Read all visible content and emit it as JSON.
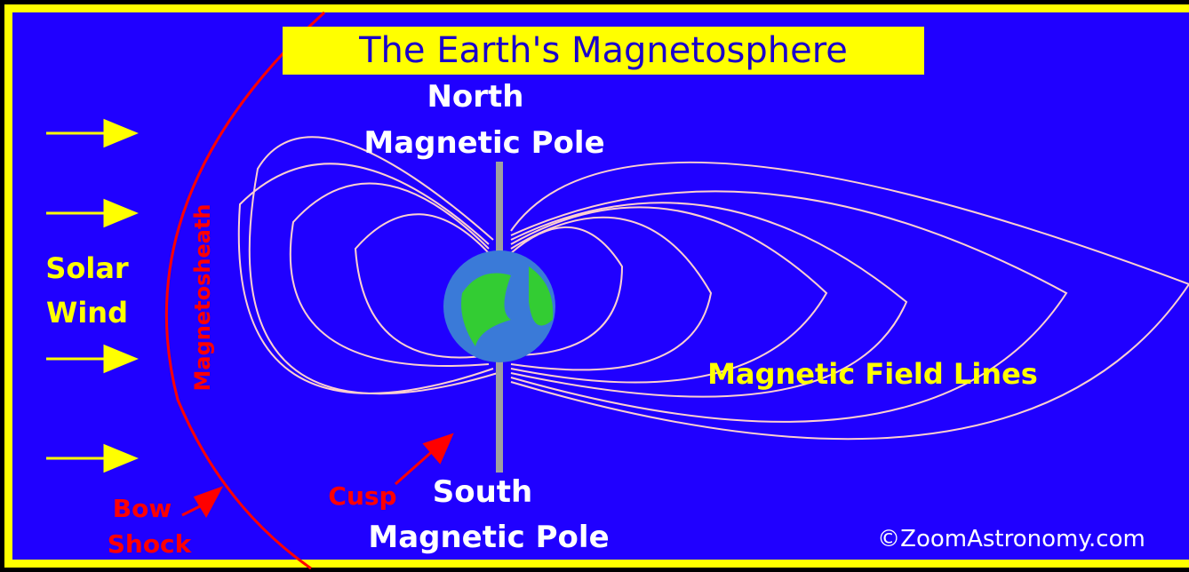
{
  "title": "The Earth's Magnetosphere",
  "labels": {
    "north": [
      "North",
      "Magnetic Pole"
    ],
    "south": [
      "South",
      "Magnetic Pole"
    ],
    "solar_wind": [
      "Solar",
      "Wind"
    ],
    "magnetosheath": "Magnetosheath",
    "bow_shock": [
      "Bow",
      "Shock"
    ],
    "cusp": "Cusp",
    "field_lines": "Magnetic Field Lines"
  },
  "credit": "©ZoomAstronomy.com"
}
